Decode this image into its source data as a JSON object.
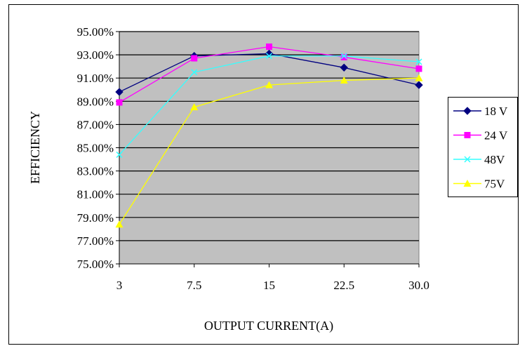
{
  "chart_data": {
    "type": "line",
    "title": "",
    "xlabel": "OUTPUT CURRENT(A)",
    "ylabel": "EFFICIENCY",
    "categories": [
      "3",
      "7.5",
      "15",
      "22.5",
      "30.0"
    ],
    "ylim": [
      75.0,
      95.0
    ],
    "yticks": [
      75,
      77,
      79,
      81,
      83,
      85,
      87,
      89,
      91,
      93,
      95
    ],
    "ytick_labels": [
      "75.00%",
      "77.00%",
      "79.00%",
      "81.00%",
      "83.00%",
      "85.00%",
      "87.00%",
      "89.00%",
      "91.00%",
      "93.00%",
      "95.00%"
    ],
    "grid": "horizontal",
    "plot_background": "#c0c0c0",
    "legend_position": "right",
    "series": [
      {
        "name": "18 V",
        "color": "#000080",
        "marker": "diamond",
        "values": [
          89.8,
          92.9,
          93.1,
          91.9,
          90.4
        ]
      },
      {
        "name": "24 V",
        "color": "#ff00ff",
        "marker": "square",
        "values": [
          88.9,
          92.7,
          93.7,
          92.8,
          91.8
        ]
      },
      {
        "name": "48V",
        "color": "#33ffff",
        "marker": "x",
        "values": [
          84.4,
          91.5,
          92.9,
          92.9,
          92.4
        ]
      },
      {
        "name": "75V",
        "color": "#ffff00",
        "marker": "triangle",
        "values": [
          78.4,
          88.5,
          90.4,
          90.8,
          91.0
        ]
      }
    ]
  }
}
